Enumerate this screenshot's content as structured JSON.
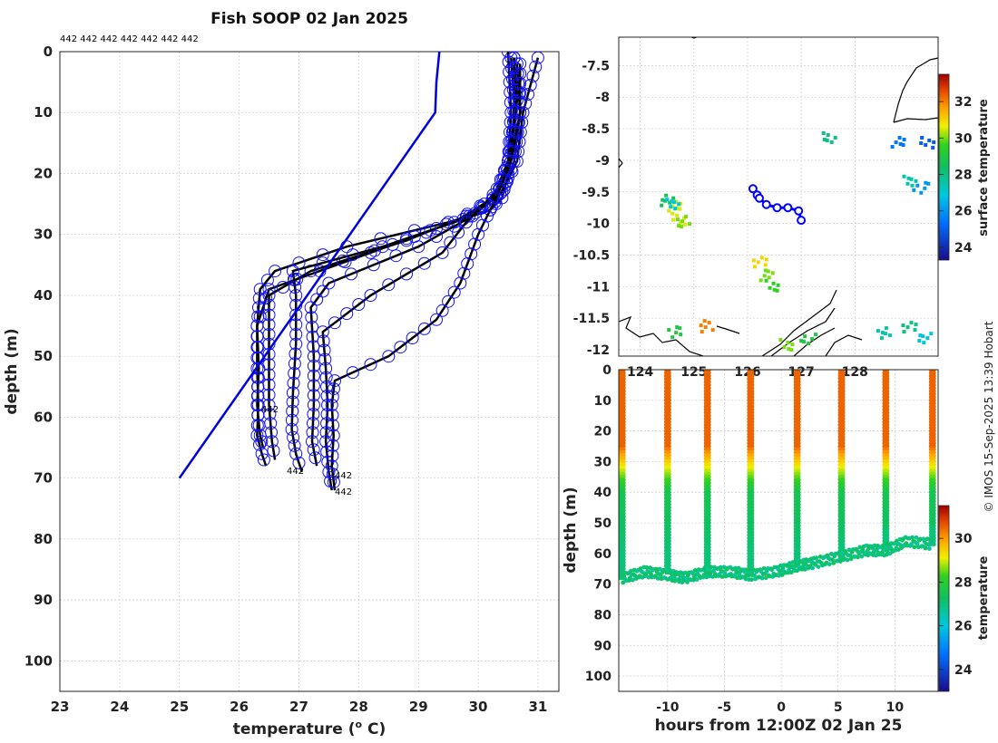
{
  "chart_data": [
    {
      "type": "line",
      "title": "Fish SOOP 02 Jan 2025",
      "xlabel": "temperature (",
      "xlabel_sup": "o",
      "xlabel_tail": " C)",
      "ylabel": "depth (m)",
      "xlim": [
        23,
        31.35
      ],
      "ylim": [
        105,
        0
      ],
      "xticks": [
        23,
        24,
        25,
        26,
        27,
        28,
        29,
        30,
        31
      ],
      "yticks": [
        0,
        10,
        20,
        30,
        40,
        50,
        60,
        70,
        80,
        90,
        100
      ],
      "top_label": "442 442 442 442 442 442 442",
      "annotations": [
        "442",
        "442",
        "442",
        "442"
      ],
      "climatology": {
        "color": "#0000dd",
        "temperature": [
          29.35,
          29.3,
          29.28,
          25.0
        ],
        "depth": [
          0,
          5,
          10,
          70
        ]
      },
      "profiles": [
        {
          "temperature": [
            30.55,
            30.6,
            30.58,
            30.5,
            30.4,
            30.2,
            29.5,
            27.8,
            26.6,
            26.35,
            26.3,
            26.3,
            26.32,
            26.3,
            26.38,
            26.45
          ],
          "depth": [
            1,
            8,
            15,
            20,
            24,
            26,
            28,
            32,
            36,
            39,
            45,
            52,
            58,
            63,
            66,
            68
          ]
        },
        {
          "temperature": [
            30.65,
            30.7,
            30.6,
            30.45,
            30.2,
            29.3,
            28.2,
            26.5,
            26.3,
            26.33,
            26.3,
            26.35,
            26.4
          ],
          "depth": [
            2,
            10,
            18,
            22,
            26,
            29,
            33,
            39,
            45,
            52,
            58,
            63,
            65
          ]
        },
        {
          "temperature": [
            30.5,
            30.55,
            30.5,
            30.3,
            29.8,
            28.8,
            27.2,
            26.5,
            26.5,
            26.5,
            26.55,
            26.6
          ],
          "depth": [
            0,
            10,
            18,
            24,
            27,
            31,
            36,
            40,
            48,
            58,
            64,
            67
          ]
        },
        {
          "temperature": [
            30.6,
            30.62,
            30.5,
            30.25,
            29.6,
            28.4,
            26.9,
            26.95,
            26.95,
            26.9,
            26.88,
            26.95,
            27.05
          ],
          "depth": [
            1,
            10,
            18,
            24,
            28,
            32,
            36,
            40,
            48,
            56,
            62,
            66,
            69
          ]
        },
        {
          "temperature": [
            31.0,
            30.75,
            30.65,
            30.4,
            29.9,
            29.0,
            27.5,
            27.2,
            27.25,
            27.25,
            27.22,
            27.3
          ],
          "depth": [
            1,
            10,
            18,
            23,
            27,
            32,
            38,
            42,
            50,
            58,
            64,
            68
          ]
        },
        {
          "temperature": [
            30.6,
            30.65,
            30.55,
            30.4,
            29.8,
            29.4,
            28.2,
            27.4,
            27.45,
            27.48,
            27.45,
            27.5,
            27.55
          ],
          "depth": [
            1,
            8,
            16,
            22,
            28,
            33,
            40,
            46,
            52,
            58,
            64,
            69,
            72
          ]
        },
        {
          "temperature": [
            30.7,
            30.7,
            30.55,
            30.3,
            30.0,
            29.7,
            29.3,
            28.5,
            27.6,
            27.55,
            27.58,
            27.55,
            27.6
          ],
          "depth": [
            2,
            10,
            18,
            24,
            30,
            38,
            44,
            50,
            54,
            58,
            63,
            68,
            72
          ]
        }
      ]
    },
    {
      "type": "scatter",
      "xlim": [
        123.6,
        129.55
      ],
      "ylim": [
        -12.1,
        -7.05
      ],
      "xticks": [
        124,
        125,
        126,
        127,
        128
      ],
      "yticks": [
        -7.5,
        -8,
        -8.5,
        -9,
        -9.5,
        -10,
        -10.5,
        -11,
        -11.5,
        -12
      ],
      "colorbar": {
        "label": "surface temperature",
        "ticks": [
          24,
          26,
          28,
          30,
          32
        ],
        "range": [
          23.3,
          33.5
        ]
      },
      "track": {
        "color": "#0000ff",
        "lon": [
          126.1,
          126.18,
          126.22,
          126.35,
          126.55,
          126.75,
          126.95,
          127.0
        ],
        "lat": [
          -9.45,
          -9.55,
          -9.6,
          -9.7,
          -9.75,
          -9.75,
          -9.8,
          -9.95
        ]
      },
      "sst_patches": [
        {
          "lon": 124.7,
          "lat": -9.9,
          "v": 30.5
        },
        {
          "lon": 124.75,
          "lat": -9.95,
          "v": 30.0
        },
        {
          "lon": 124.6,
          "lat": -9.7,
          "v": 30.5
        },
        {
          "lon": 124.5,
          "lat": -9.6,
          "v": 28.5
        },
        {
          "lon": 124.55,
          "lat": -9.65,
          "v": 27.0
        },
        {
          "lon": 126.2,
          "lat": -10.6,
          "v": 31.0
        },
        {
          "lon": 126.35,
          "lat": -10.8,
          "v": 30.0
        },
        {
          "lon": 126.4,
          "lat": -10.95,
          "v": 29.5
        },
        {
          "lon": 127.5,
          "lat": -8.6,
          "v": 28.0
        },
        {
          "lon": 128.8,
          "lat": -8.7,
          "v": 25.5
        },
        {
          "lon": 129.3,
          "lat": -8.7,
          "v": 25.0
        },
        {
          "lon": 129.0,
          "lat": -9.3,
          "v": 27.5
        },
        {
          "lon": 129.2,
          "lat": -9.4,
          "v": 26.0
        },
        {
          "lon": 125.2,
          "lat": -11.6,
          "v": 32.0
        },
        {
          "lon": 126.7,
          "lat": -11.9,
          "v": 30.0
        },
        {
          "lon": 127.1,
          "lat": -11.8,
          "v": 29.0
        },
        {
          "lon": 128.5,
          "lat": -11.7,
          "v": 27.5
        },
        {
          "lon": 129.0,
          "lat": -11.6,
          "v": 28.0
        },
        {
          "lon": 129.25,
          "lat": -11.8,
          "v": 27.0
        },
        {
          "lon": 124.6,
          "lat": -11.7,
          "v": 29.0
        }
      ]
    },
    {
      "type": "scatter",
      "xlabel": "hours from 12:00Z 02 Jan 25",
      "ylabel": "depth (m)",
      "xlim": [
        -14.3,
        13.8
      ],
      "ylim": [
        105,
        0
      ],
      "xticks": [
        -10,
        -5,
        0,
        5,
        10
      ],
      "yticks": [
        0,
        10,
        20,
        30,
        40,
        50,
        60,
        70,
        80,
        90,
        100
      ],
      "colorbar": {
        "label": "temperature",
        "ticks": [
          24,
          26,
          28,
          30
        ],
        "range": [
          23,
          31.5
        ]
      },
      "casts": [
        {
          "hour": -14.0,
          "max_depth": 68
        },
        {
          "hour": -10.0,
          "max_depth": 66
        },
        {
          "hour": -6.5,
          "max_depth": 67
        },
        {
          "hour": -2.7,
          "max_depth": 67
        },
        {
          "hour": 1.4,
          "max_depth": 64
        },
        {
          "hour": 5.3,
          "max_depth": 62
        },
        {
          "hour": 9.2,
          "max_depth": 58
        },
        {
          "hour": 13.3,
          "max_depth": 57
        }
      ],
      "bottom": {
        "hour": [
          -14.0,
          -12.0,
          -10.0,
          -8.5,
          -6.5,
          -4.5,
          -2.7,
          -0.5,
          1.4,
          3.0,
          5.3,
          7.5,
          9.2,
          11.0,
          13.3
        ],
        "depth": [
          68,
          66,
          67,
          68,
          66,
          66,
          67,
          66,
          64,
          63,
          61,
          59,
          59,
          56,
          57
        ]
      }
    }
  ],
  "watermark": "© IMOS 15-Sep-2025 13:39 Hobart"
}
